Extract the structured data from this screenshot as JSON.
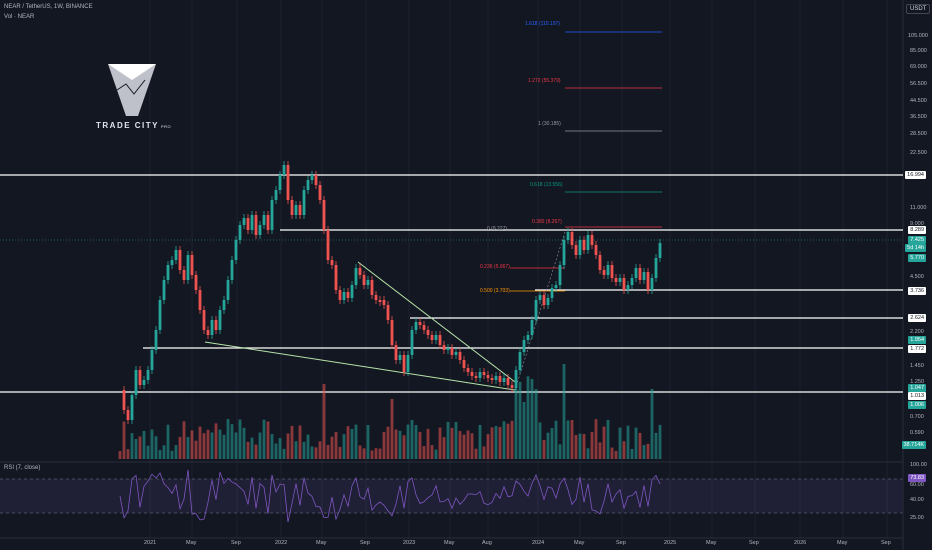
{
  "header": {
    "title": "NEAR / TetherUS, 1W, BINANCE",
    "volume_label": "Vol · NEAR",
    "currency_button": "USDT"
  },
  "logo": {
    "name": "TRADE CITY",
    "suffix": "PRO"
  },
  "price_axis": {
    "labels": [
      "105.000",
      "85.000",
      "69.000",
      "56.500",
      "44.500",
      "36.500",
      "28.500",
      "22.500",
      "11.000",
      "9.000",
      "4.500",
      "2.200",
      "1.450",
      "0.700",
      "0.590"
    ],
    "tags": [
      {
        "text": "16.994",
        "bg": "#ffffff",
        "fg": "#131722"
      },
      {
        "text": "8.289",
        "bg": "#ffffff",
        "fg": "#131722"
      },
      {
        "text": "7.425",
        "bg": "#26a69a",
        "fg": "#ffffff"
      },
      {
        "text": "5d 14h",
        "bg": "#26a69a",
        "fg": "#ffffff"
      },
      {
        "text": "5.770",
        "bg": "#26a69a",
        "fg": "#ffffff"
      },
      {
        "text": "3.736",
        "bg": "#ffffff",
        "fg": "#131722"
      },
      {
        "text": "2.624",
        "bg": "#ffffff",
        "fg": "#131722"
      },
      {
        "text": "1.954",
        "bg": "#26a69a",
        "fg": "#ffffff"
      },
      {
        "text": "1.772",
        "bg": "#ffffff",
        "fg": "#131722"
      },
      {
        "text": "1.250",
        "bg": "#131722",
        "fg": "#b2b5be"
      },
      {
        "text": "1.047",
        "bg": "#26a69a",
        "fg": "#ffffff"
      },
      {
        "text": "1.013",
        "bg": "#ffffff",
        "fg": "#131722"
      },
      {
        "text": "1.006",
        "bg": "#26a69a",
        "fg": "#ffffff"
      },
      {
        "text": "38.714K",
        "bg": "#26a69a",
        "fg": "#ffffff"
      }
    ]
  },
  "fib_levels": [
    {
      "text": "1.618 (110.197)",
      "color": "#2962ff"
    },
    {
      "text": "1.272 (55.379)",
      "color": "#f23645"
    },
    {
      "text": "1 (30.185)",
      "color": "#9598a1"
    },
    {
      "text": "0.618 (13.556)",
      "color": "#089981"
    },
    {
      "text": "0.382 (8.267)",
      "color": "#f23645"
    },
    {
      "text": "0 (8.227)",
      "color": "#9598a1"
    },
    {
      "text": "0.236 (5.067)",
      "color": "#f23645"
    },
    {
      "text": "0.500 (3.703)",
      "color": "#ff9800"
    }
  ],
  "rsi": {
    "title": "RSI (7, close)",
    "value_tag": "73.83",
    "axis_labels": [
      "100.00",
      "60.00",
      "40.00",
      "25.00"
    ]
  },
  "time_axis": {
    "labels": [
      "2021",
      "May",
      "Sep",
      "2022",
      "May",
      "Sep",
      "2023",
      "May",
      "Aug",
      "2024",
      "May",
      "Sep",
      "2025",
      "May",
      "Sep",
      "2026",
      "May",
      "Sep"
    ]
  },
  "colors": {
    "background": "#131722",
    "up": "#26a69a",
    "down": "#ef5350",
    "rsi_line": "#7e57c2",
    "level_line": "#ffffff"
  }
}
